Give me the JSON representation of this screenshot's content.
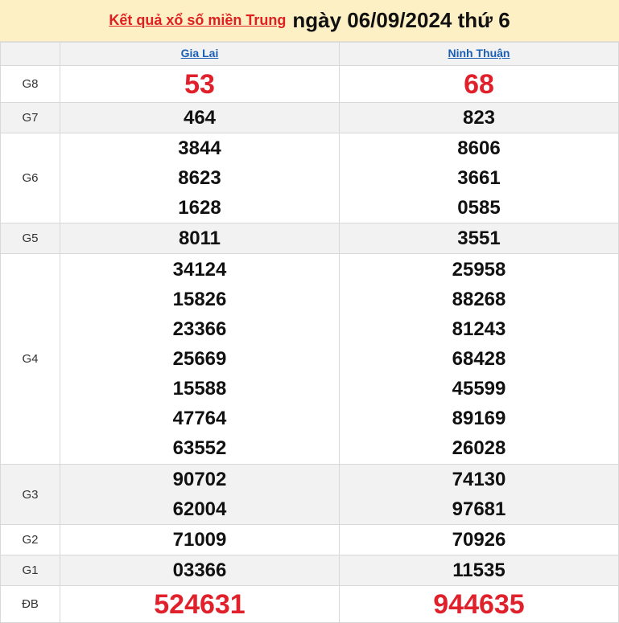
{
  "header": {
    "link": "Kết quả xổ số miền Trung",
    "date": "ngày 06/09/2024 thứ 6"
  },
  "provinces": [
    "Gia Lai",
    "Ninh Thuận"
  ],
  "prizes": [
    {
      "label": "G8",
      "a": [
        "53"
      ],
      "b": [
        "68"
      ],
      "big": true
    },
    {
      "label": "G7",
      "a": [
        "464"
      ],
      "b": [
        "823"
      ]
    },
    {
      "label": "G6",
      "a": [
        "3844",
        "8623",
        "1628"
      ],
      "b": [
        "8606",
        "3661",
        "0585"
      ]
    },
    {
      "label": "G5",
      "a": [
        "8011"
      ],
      "b": [
        "3551"
      ]
    },
    {
      "label": "G4",
      "a": [
        "34124",
        "15826",
        "23366",
        "25669",
        "15588",
        "47764",
        "63552"
      ],
      "b": [
        "25958",
        "88268",
        "81243",
        "68428",
        "45599",
        "89169",
        "26028"
      ]
    },
    {
      "label": "G3",
      "a": [
        "90702",
        "62004"
      ],
      "b": [
        "74130",
        "97681"
      ]
    },
    {
      "label": "G2",
      "a": [
        "71009"
      ],
      "b": [
        "70926"
      ]
    },
    {
      "label": "G1",
      "a": [
        "03366"
      ],
      "b": [
        "11535"
      ]
    },
    {
      "label": "ĐB",
      "a": [
        "524631"
      ],
      "b": [
        "944635"
      ],
      "big": true
    }
  ]
}
